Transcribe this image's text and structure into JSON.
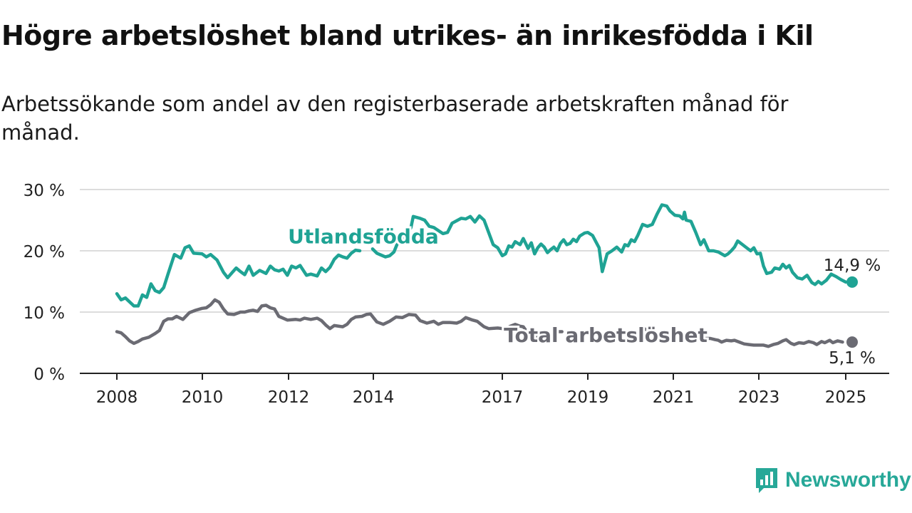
{
  "header": {
    "title": "Högre arbetslöshet bland utrikes- än inrikesfödda i Kil",
    "subtitle": "Arbetssökande som andel av den registerbaserade arbetskraften månad för månad."
  },
  "brand": {
    "name": "Newsworthy",
    "icon": "newsworthy-logo-icon",
    "color": "#27a898"
  },
  "chart_data": {
    "type": "line",
    "title": "Högre arbetslöshet bland utrikes- än inrikesfödda i Kil",
    "subtitle": "Arbetssökande som andel av den registerbaserade arbetskraften månad för månad.",
    "xlabel": "",
    "ylabel": "",
    "ylim": [
      0,
      30
    ],
    "xlim": [
      2008.0,
      2025.1
    ],
    "y_ticks": [
      0,
      10,
      20,
      30
    ],
    "y_tick_labels": [
      "0 %",
      "10 %",
      "20 %",
      "30 %"
    ],
    "x_ticks": [
      2008,
      2010,
      2012,
      2014,
      2017,
      2019,
      2021,
      2023,
      2025
    ],
    "x_tick_labels": [
      "2008",
      "2010",
      "2012",
      "2014",
      "2017",
      "2019",
      "2021",
      "2023",
      "2025"
    ],
    "grid": "horizontal",
    "legend": "inline labels",
    "series": [
      {
        "name": "Utlandsfödda",
        "color": "#1fa394",
        "end_label": "14,9 %",
        "points": [
          [
            2008.0,
            13.0
          ],
          [
            2008.1,
            12.0
          ],
          [
            2008.2,
            12.3
          ],
          [
            2008.4,
            11.0
          ],
          [
            2008.5,
            11.0
          ],
          [
            2008.6,
            12.8
          ],
          [
            2008.7,
            12.4
          ],
          [
            2008.8,
            14.6
          ],
          [
            2008.9,
            13.5
          ],
          [
            2009.0,
            13.2
          ],
          [
            2009.1,
            14.0
          ],
          [
            2009.2,
            16.2
          ],
          [
            2009.35,
            19.4
          ],
          [
            2009.5,
            18.8
          ],
          [
            2009.6,
            20.5
          ],
          [
            2009.7,
            20.8
          ],
          [
            2009.8,
            19.6
          ],
          [
            2010.0,
            19.5
          ],
          [
            2010.1,
            19.0
          ],
          [
            2010.2,
            19.4
          ],
          [
            2010.35,
            18.5
          ],
          [
            2010.5,
            16.5
          ],
          [
            2010.6,
            15.6
          ],
          [
            2010.8,
            17.2
          ],
          [
            2010.9,
            16.6
          ],
          [
            2011.0,
            16.1
          ],
          [
            2011.1,
            17.5
          ],
          [
            2011.2,
            16.0
          ],
          [
            2011.35,
            16.8
          ],
          [
            2011.5,
            16.3
          ],
          [
            2011.6,
            17.5
          ],
          [
            2011.7,
            16.9
          ],
          [
            2011.8,
            16.7
          ],
          [
            2011.9,
            17.0
          ],
          [
            2012.0,
            16.0
          ],
          [
            2012.1,
            17.5
          ],
          [
            2012.2,
            17.2
          ],
          [
            2012.3,
            17.6
          ],
          [
            2012.45,
            16.0
          ],
          [
            2012.55,
            16.2
          ],
          [
            2012.7,
            15.9
          ],
          [
            2012.8,
            17.2
          ],
          [
            2012.9,
            16.6
          ],
          [
            2013.0,
            17.3
          ],
          [
            2013.1,
            18.6
          ],
          [
            2013.2,
            19.3
          ],
          [
            2013.3,
            19.0
          ],
          [
            2013.4,
            18.8
          ],
          [
            2013.5,
            19.6
          ],
          [
            2013.6,
            20.1
          ],
          [
            2013.7,
            20.0
          ],
          null,
          [
            2014.0,
            20.3
          ],
          [
            2014.1,
            19.6
          ],
          [
            2014.2,
            19.3
          ],
          [
            2014.3,
            19.0
          ],
          [
            2014.4,
            19.2
          ],
          [
            2014.5,
            19.8
          ],
          [
            2014.6,
            21.5
          ],
          [
            2014.7,
            21.8
          ],
          [
            2014.8,
            22.5
          ],
          [
            2014.9,
            23.8
          ],
          [
            2014.95,
            25.6
          ],
          [
            2015.1,
            25.3
          ],
          [
            2015.2,
            25.0
          ],
          [
            2015.3,
            24.0
          ],
          [
            2015.4,
            23.8
          ],
          [
            2015.5,
            23.3
          ],
          [
            2015.6,
            22.8
          ],
          [
            2015.7,
            23.0
          ],
          [
            2015.8,
            24.5
          ],
          [
            2016.0,
            25.3
          ],
          [
            2016.1,
            25.2
          ],
          [
            2016.2,
            25.6
          ],
          [
            2016.3,
            24.7
          ],
          [
            2016.4,
            25.7
          ],
          [
            2016.5,
            25.0
          ],
          [
            2016.7,
            21.0
          ],
          [
            2016.8,
            20.5
          ],
          [
            2016.9,
            19.2
          ],
          [
            2017.0,
            19.5
          ],
          [
            2017.1,
            20.8
          ],
          [
            2017.2,
            20.6
          ],
          [
            2017.3,
            21.5
          ],
          [
            2017.45,
            21.0
          ],
          [
            2017.55,
            22.0
          ],
          [
            2017.7,
            20.4
          ],
          [
            2017.8,
            21.3
          ],
          [
            2017.9,
            19.5
          ],
          [
            2018.0,
            20.5
          ],
          [
            2018.1,
            21.1
          ],
          [
            2018.2,
            20.6
          ],
          [
            2018.3,
            19.7
          ],
          [
            2018.4,
            20.2
          ],
          [
            2018.5,
            20.6
          ],
          [
            2018.6,
            20.0
          ],
          [
            2018.7,
            21.2
          ],
          [
            2018.8,
            21.8
          ],
          [
            2018.9,
            21.0
          ],
          [
            2019.0,
            21.2
          ],
          [
            2019.1,
            21.9
          ],
          [
            2019.2,
            21.5
          ],
          [
            2019.3,
            22.4
          ],
          [
            2019.45,
            22.9
          ],
          [
            2019.55,
            23.0
          ],
          [
            2019.7,
            22.5
          ],
          [
            2019.8,
            21.5
          ],
          [
            2019.9,
            20.5
          ],
          [
            2020.0,
            16.6
          ],
          [
            2020.15,
            19.5
          ],
          [
            2020.3,
            20.0
          ],
          [
            2020.45,
            20.6
          ],
          [
            2020.6,
            19.8
          ],
          [
            2020.7,
            21.0
          ],
          [
            2020.8,
            20.8
          ],
          [
            2020.9,
            21.8
          ],
          [
            2021.0,
            21.5
          ],
          [
            2021.1,
            22.5
          ],
          [
            2021.25,
            24.3
          ],
          [
            2021.4,
            24.0
          ],
          [
            2021.55,
            24.3
          ],
          [
            2021.7,
            26.0
          ],
          [
            2021.85,
            27.5
          ],
          [
            2022.0,
            27.3
          ],
          [
            2022.1,
            26.5
          ],
          [
            2022.25,
            25.8
          ],
          [
            2022.4,
            25.7
          ],
          [
            2022.5,
            25.2
          ],
          [
            2022.55,
            26.3
          ],
          [
            2022.6,
            25.0
          ],
          [
            2022.75,
            24.8
          ],
          [
            2022.9,
            23.0
          ],
          [
            2023.05,
            21.0
          ],
          [
            2023.15,
            21.8
          ],
          [
            2023.3,
            20.0
          ],
          [
            2023.45,
            20.0
          ],
          [
            2023.6,
            19.8
          ],
          [
            2023.8,
            19.2
          ],
          [
            2023.9,
            19.5
          ],
          [
            2024.0,
            20.0
          ],
          [
            2024.1,
            20.6
          ],
          [
            2024.2,
            21.6
          ],
          [
            2024.35,
            21.0
          ],
          [
            2024.5,
            20.4
          ],
          [
            2024.6,
            20.0
          ],
          [
            2024.7,
            20.5
          ],
          [
            2024.8,
            19.5
          ],
          [
            2024.9,
            19.6
          ],
          [
            2025.0,
            17.5
          ],
          [
            2025.1,
            16.3
          ],
          [
            2025.25,
            16.5
          ],
          [
            2025.35,
            17.2
          ],
          [
            2025.5,
            17.0
          ],
          [
            2025.6,
            17.8
          ],
          [
            2025.7,
            17.2
          ],
          [
            2025.8,
            17.6
          ],
          [
            2025.9,
            16.5
          ],
          [
            2026.05,
            15.6
          ],
          [
            2026.2,
            15.4
          ],
          [
            2026.35,
            16.0
          ],
          [
            2026.5,
            14.8
          ],
          [
            2026.6,
            14.5
          ],
          [
            2026.7,
            15.0
          ],
          [
            2026.8,
            14.6
          ],
          [
            2026.95,
            15.2
          ],
          [
            2027.1,
            16.2
          ],
          [
            2027.25,
            15.8
          ],
          [
            2027.4,
            15.3
          ],
          [
            2027.55,
            14.9
          ]
        ]
      },
      {
        "name": "Total arbetslöshet",
        "color": "#6b6b73",
        "end_label": "5,1 %",
        "points": [
          [
            2008.0,
            6.8
          ],
          [
            2008.1,
            6.6
          ],
          [
            2008.2,
            6.0
          ],
          [
            2008.3,
            5.3
          ],
          [
            2008.4,
            4.9
          ],
          [
            2008.5,
            5.2
          ],
          [
            2008.6,
            5.6
          ],
          [
            2008.75,
            5.9
          ],
          [
            2008.9,
            6.5
          ],
          [
            2009.0,
            7.0
          ],
          [
            2009.1,
            8.5
          ],
          [
            2009.2,
            8.9
          ],
          [
            2009.3,
            8.9
          ],
          [
            2009.4,
            9.3
          ],
          [
            2009.55,
            8.8
          ],
          [
            2009.7,
            9.9
          ],
          [
            2009.85,
            10.3
          ],
          [
            2010.0,
            10.6
          ],
          [
            2010.1,
            10.7
          ],
          [
            2010.2,
            11.2
          ],
          [
            2010.3,
            12.0
          ],
          [
            2010.4,
            11.6
          ],
          [
            2010.5,
            10.5
          ],
          [
            2010.6,
            9.7
          ],
          [
            2010.75,
            9.6
          ],
          [
            2010.9,
            10.0
          ],
          [
            2011.0,
            10.0
          ],
          [
            2011.1,
            10.2
          ],
          [
            2011.2,
            10.3
          ],
          [
            2011.3,
            10.1
          ],
          [
            2011.4,
            11.0
          ],
          [
            2011.5,
            11.1
          ],
          [
            2011.6,
            10.7
          ],
          [
            2011.7,
            10.5
          ],
          [
            2011.8,
            9.3
          ],
          [
            2011.9,
            9.0
          ],
          [
            2012.0,
            8.7
          ],
          [
            2012.2,
            8.8
          ],
          [
            2012.3,
            8.7
          ],
          [
            2012.4,
            9.0
          ],
          [
            2012.55,
            8.8
          ],
          [
            2012.7,
            9.0
          ],
          [
            2012.8,
            8.6
          ],
          [
            2012.9,
            7.9
          ],
          [
            2013.0,
            7.3
          ],
          [
            2013.1,
            7.8
          ],
          [
            2013.3,
            7.6
          ],
          [
            2013.4,
            8.0
          ],
          [
            2013.5,
            8.8
          ],
          [
            2013.6,
            9.2
          ],
          [
            2013.75,
            9.3
          ],
          [
            2013.85,
            9.6
          ],
          [
            2013.95,
            9.7
          ],
          [
            2014.1,
            8.4
          ],
          [
            2014.25,
            8.0
          ],
          [
            2014.4,
            8.5
          ],
          [
            2014.55,
            9.2
          ],
          [
            2014.7,
            9.1
          ],
          [
            2014.85,
            9.6
          ],
          [
            2015.0,
            9.5
          ],
          [
            2015.1,
            8.6
          ],
          [
            2015.25,
            8.2
          ],
          [
            2015.4,
            8.5
          ],
          [
            2015.5,
            8.0
          ],
          [
            2015.6,
            8.3
          ],
          [
            2015.75,
            8.3
          ],
          [
            2015.9,
            8.2
          ],
          [
            2016.0,
            8.5
          ],
          [
            2016.1,
            9.1
          ],
          [
            2016.25,
            8.7
          ],
          [
            2016.35,
            8.5
          ],
          [
            2016.5,
            7.6
          ],
          [
            2016.6,
            7.3
          ],
          [
            2016.8,
            7.4
          ],
          [
            2016.9,
            7.3
          ],
          [
            2017.05,
            7.4
          ],
          [
            2017.15,
            7.7
          ],
          [
            2017.3,
            8.0
          ],
          [
            2017.45,
            7.7
          ],
          [
            2017.55,
            7.6
          ],
          [
            2017.7,
            6.5
          ],
          [
            2017.8,
            5.9
          ],
          [
            2017.95,
            6.0
          ],
          [
            2018.1,
            6.2
          ],
          [
            2018.25,
            6.1
          ],
          [
            2018.35,
            6.5
          ],
          [
            2018.5,
            6.4
          ],
          [
            2018.6,
            6.8
          ],
          [
            2018.75,
            6.8
          ],
          null,
          [
            2021.3,
            7.3
          ],
          [
            2021.4,
            7.0
          ],
          null,
          [
            2022.35,
            5.9
          ],
          [
            2022.5,
            5.9
          ],
          [
            2022.65,
            6.0
          ],
          [
            2022.8,
            6.2
          ],
          [
            2022.9,
            6.3
          ],
          [
            2023.0,
            6.0
          ],
          [
            2023.1,
            5.9
          ],
          [
            2023.2,
            5.7
          ],
          [
            2023.35,
            5.7
          ],
          [
            2023.5,
            5.5
          ],
          [
            2023.6,
            5.4
          ],
          [
            2023.7,
            5.1
          ],
          [
            2023.85,
            5.4
          ],
          [
            2024.0,
            5.3
          ],
          [
            2024.1,
            5.4
          ],
          [
            2024.25,
            5.1
          ],
          [
            2024.4,
            4.8
          ],
          [
            2024.55,
            4.7
          ],
          [
            2024.7,
            4.6
          ],
          [
            2024.85,
            4.6
          ],
          [
            2025.0,
            4.6
          ],
          [
            2025.15,
            4.4
          ],
          [
            2025.3,
            4.7
          ],
          [
            2025.45,
            4.9
          ],
          [
            2025.6,
            5.3
          ],
          [
            2025.7,
            5.5
          ],
          [
            2025.85,
            4.9
          ],
          [
            2025.95,
            4.7
          ],
          [
            2026.1,
            5.0
          ],
          [
            2026.25,
            4.9
          ],
          [
            2026.4,
            5.2
          ],
          [
            2026.55,
            5.0
          ],
          [
            2026.65,
            4.7
          ],
          [
            2026.8,
            5.2
          ],
          [
            2026.9,
            5.0
          ],
          [
            2027.05,
            5.4
          ],
          [
            2027.15,
            5.0
          ],
          [
            2027.3,
            5.3
          ],
          [
            2027.45,
            5.1
          ]
        ]
      }
    ]
  }
}
